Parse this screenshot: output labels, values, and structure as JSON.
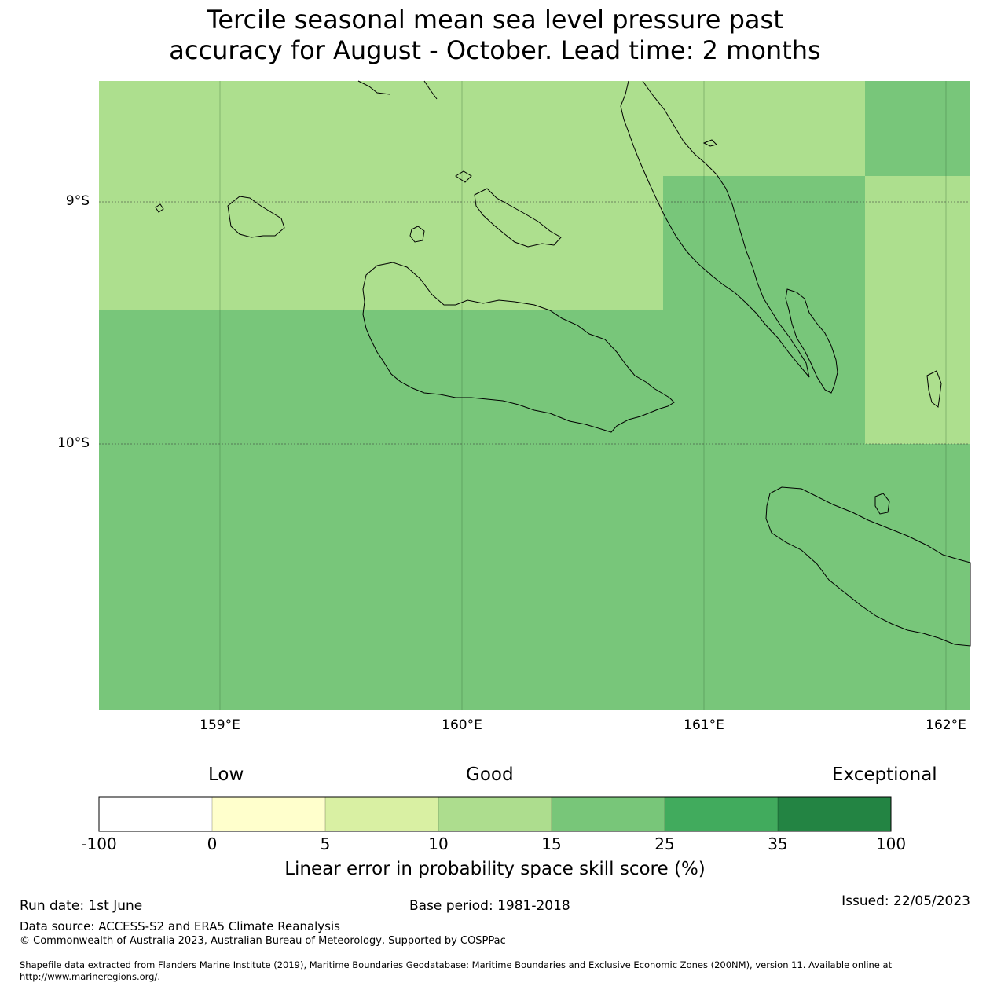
{
  "title": {
    "line1": "Tercile seasonal mean sea level pressure past",
    "line2": "accuracy for August - October. Lead time: 2 months"
  },
  "map": {
    "lat_ticks": [
      "9°S",
      "10°S"
    ],
    "lon_ticks": [
      "159°E",
      "160°E",
      "161°E",
      "162°E"
    ],
    "colors": {
      "skill_10_15": "#addf8e",
      "skill_15_25": "#78c67a",
      "coastline": "#000000",
      "gridline": "#3a6a3a"
    }
  },
  "colorbar": {
    "categories": {
      "low": "Low",
      "good": "Good",
      "exceptional": "Exceptional"
    },
    "ticks": [
      "-100",
      "0",
      "5",
      "10",
      "15",
      "25",
      "35",
      "100"
    ],
    "colors": [
      "#ffffff",
      "#ffffcc",
      "#d9f0a3",
      "#addd8e",
      "#78c679",
      "#41ab5d",
      "#238443"
    ],
    "label": "Linear error in probability space skill score (%)"
  },
  "footer": {
    "run_date": "Run date: 1st June",
    "base_period": "Base period: 1981-2018",
    "issued": "Issued: 22/05/2023",
    "data_source": "Data source: ACCESS-S2 and ERA5 Climate Reanalysis",
    "copyright": "© Commonwealth of Australia 2023, Australian Bureau of Meteorology, Supported by COSPPac",
    "shapefile_line1": "Shapefile data extracted from Flanders Marine Institute (2019), Maritime Boundaries Geodatabase: Maritime Boundaries and Exclusive Economic Zones (200NM), version 11. Available online at",
    "shapefile_line2": "http://www.marineregions.org/."
  }
}
